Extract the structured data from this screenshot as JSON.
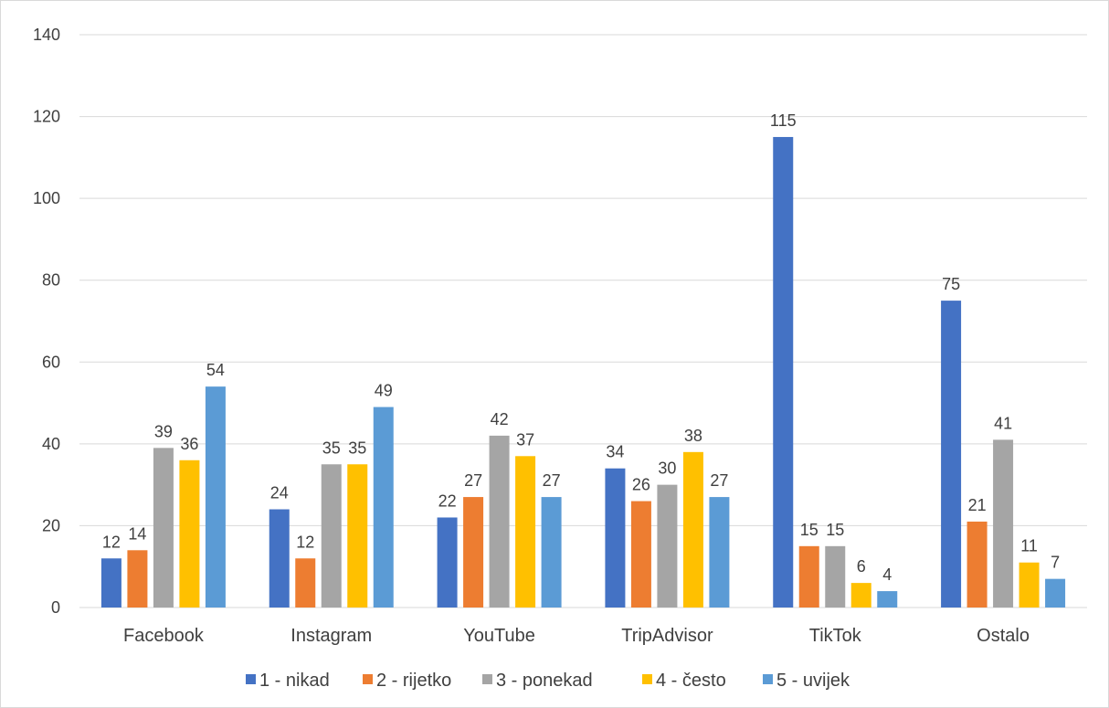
{
  "chart_data": {
    "type": "bar",
    "title": "",
    "xlabel": "",
    "ylabel": "",
    "ylim": [
      0,
      140
    ],
    "yticks": [
      0,
      20,
      40,
      60,
      80,
      100,
      120,
      140
    ],
    "grid": true,
    "legend_position": "bottom",
    "categories": [
      "Facebook",
      "Instagram",
      "YouTube",
      "TripAdvisor",
      "TikTok",
      "Ostalo"
    ],
    "series": [
      {
        "name": "1 - nikad",
        "color": "#4472C4",
        "values": [
          12,
          24,
          22,
          34,
          115,
          75
        ]
      },
      {
        "name": "2 - rijetko",
        "color": "#ED7D31",
        "values": [
          14,
          12,
          27,
          26,
          15,
          21
        ]
      },
      {
        "name": "3 - ponekad",
        "color": "#A5A5A5",
        "values": [
          39,
          35,
          42,
          30,
          15,
          41
        ]
      },
      {
        "name": "4 - često",
        "color": "#FFC000",
        "values": [
          36,
          35,
          37,
          38,
          6,
          11
        ]
      },
      {
        "name": "5 - uvijek",
        "color": "#5B9BD5",
        "values": [
          54,
          49,
          27,
          27,
          4,
          7
        ]
      }
    ]
  }
}
